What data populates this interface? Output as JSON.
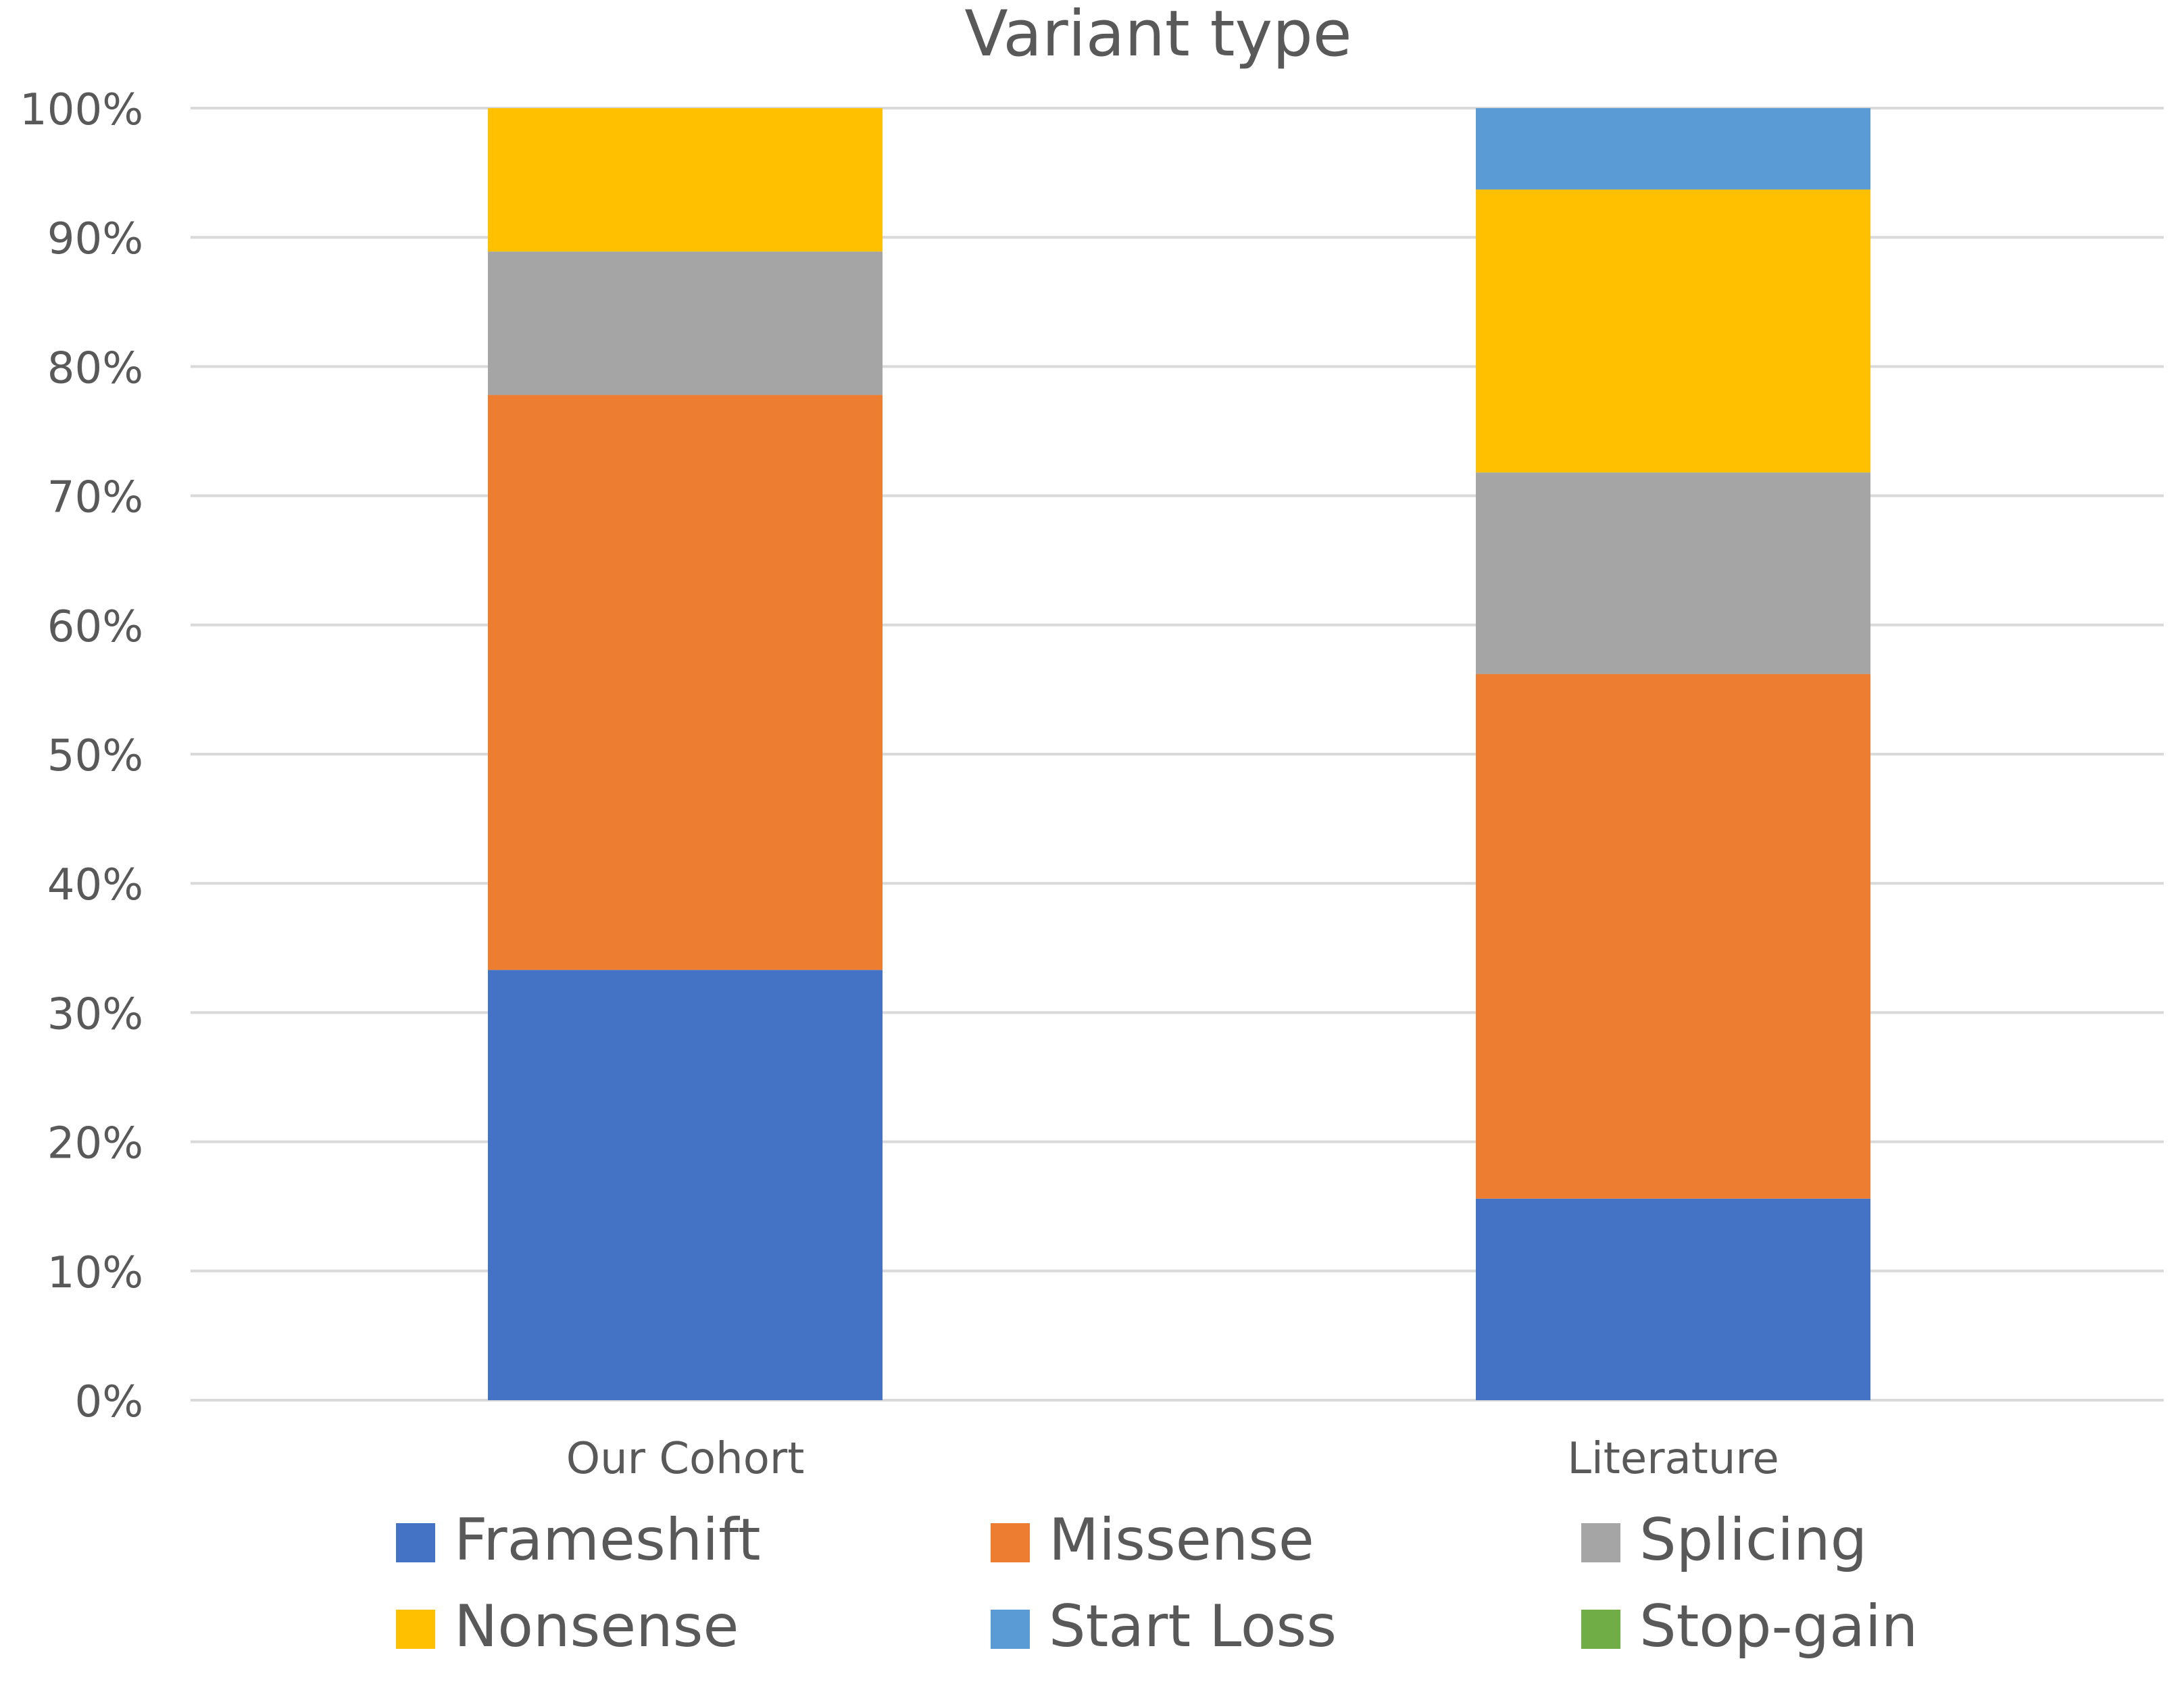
{
  "chart_data": {
    "type": "bar",
    "stacked": true,
    "title": "Variant type",
    "xlabel": "",
    "ylabel": "",
    "categories": [
      "Our Cohort",
      "Literature"
    ],
    "ylim": [
      0,
      100
    ],
    "y_ticks": [
      "0%",
      "10%",
      "20%",
      "30%",
      "40%",
      "50%",
      "60%",
      "70%",
      "80%",
      "90%",
      "100%"
    ],
    "grid": true,
    "legend_position": "bottom",
    "series": [
      {
        "name": "Frameshift",
        "color": "#4472C4",
        "values": [
          33.3,
          15.6
        ]
      },
      {
        "name": "Missense",
        "color": "#ED7D31",
        "values": [
          44.5,
          40.6
        ]
      },
      {
        "name": "Splicing",
        "color": "#A5A5A5",
        "values": [
          11.1,
          15.6
        ]
      },
      {
        "name": "Nonsense",
        "color": "#FFC000",
        "values": [
          11.1,
          21.9
        ]
      },
      {
        "name": "Start Loss",
        "color": "#5B9BD5",
        "values": [
          0,
          6.3
        ]
      },
      {
        "name": "Stop-gain",
        "color": "#70AD47",
        "values": [
          0,
          0
        ]
      }
    ]
  }
}
